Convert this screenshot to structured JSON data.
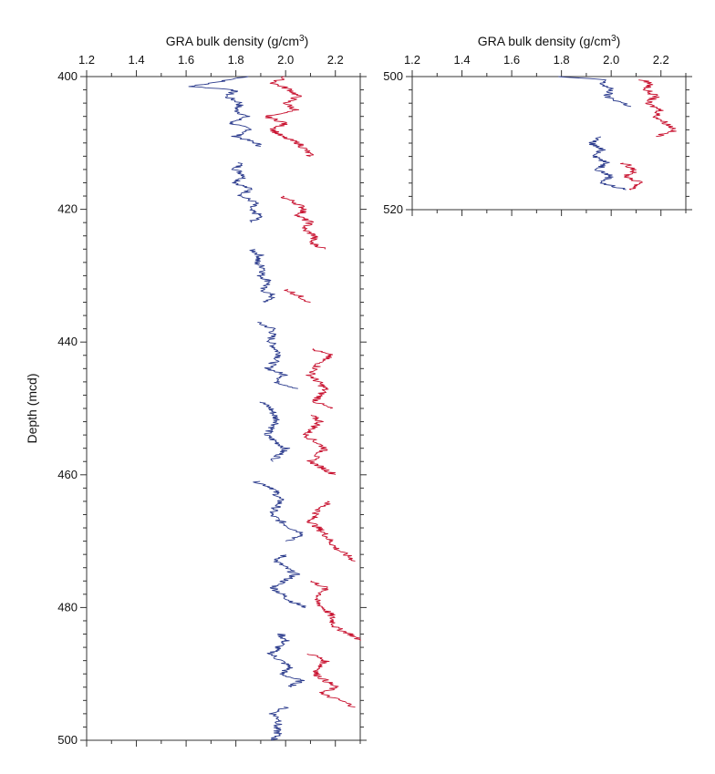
{
  "chart_data": [
    {
      "type": "line",
      "orientation": "depth-profile",
      "xlabel": "GRA bulk density (g/cm",
      "xlabel_sup": "3",
      "xlabel_end": ")",
      "ylabel": "Depth (mcd)",
      "xlim": [
        1.2,
        2.3
      ],
      "ylim": [
        400,
        500
      ],
      "y_inverted": true,
      "x_tick_labels": [
        "1.2",
        "1.4",
        "1.6",
        "1.8",
        "2.0",
        "2.2"
      ],
      "y_tick_labels": [
        "400",
        "420",
        "440",
        "460",
        "480",
        "500"
      ],
      "series": [
        {
          "color": "#2a3a8c",
          "segments": [
            {
              "depth": [
                400.0,
                401.5,
                402.0,
                403.0,
                404.0,
                405.0,
                406.0,
                407.0,
                408.0,
                409.0,
                410.0,
                410.5
              ],
              "density": [
                1.85,
                1.62,
                1.8,
                1.76,
                1.82,
                1.8,
                1.84,
                1.78,
                1.86,
                1.8,
                1.88,
                1.9
              ]
            },
            {
              "depth": [
                413.0,
                414.0,
                415.0,
                416.0,
                417.0,
                418.0,
                419.0,
                420.0,
                421.0,
                422.0
              ],
              "density": [
                1.82,
                1.8,
                1.84,
                1.8,
                1.86,
                1.82,
                1.88,
                1.85,
                1.9,
                1.86
              ]
            },
            {
              "depth": [
                426.0,
                427.0,
                428.0,
                429.0,
                430.0,
                431.0,
                432.0,
                433.0,
                434.0
              ],
              "density": [
                1.86,
                1.9,
                1.88,
                1.92,
                1.9,
                1.94,
                1.9,
                1.95,
                1.92
              ]
            },
            {
              "depth": [
                437.0,
                438.0,
                440.0,
                442.0,
                444.0,
                445.0,
                446.0,
                447.0
              ],
              "density": [
                1.88,
                1.95,
                1.94,
                1.98,
                1.93,
                2.0,
                1.96,
                2.05
              ]
            },
            {
              "depth": [
                449.0,
                450.0,
                452.0,
                454.0,
                456.0,
                458.0
              ],
              "density": [
                1.9,
                1.94,
                1.97,
                1.92,
                2.0,
                1.95
              ]
            },
            {
              "depth": [
                461.0,
                462.0,
                464.0,
                466.0,
                468.0,
                469.0,
                470.0
              ],
              "density": [
                1.88,
                1.95,
                1.98,
                1.94,
                2.02,
                2.08,
                2.0
              ]
            },
            {
              "depth": [
                472.0,
                473.0,
                475.0,
                477.0,
                479.0,
                480.0
              ],
              "density": [
                2.0,
                1.96,
                2.04,
                1.95,
                2.02,
                2.08
              ]
            },
            {
              "depth": [
                484.0,
                485.0,
                487.0,
                489.0,
                490.0,
                491.0,
                492.0
              ],
              "density": [
                1.98,
                2.0,
                1.94,
                2.02,
                1.98,
                2.06,
                2.02
              ]
            },
            {
              "depth": [
                495.0,
                496.0,
                497.0,
                498.0,
                499.0,
                500.0
              ],
              "density": [
                2.0,
                1.95,
                1.98,
                1.96,
                1.97,
                1.95
              ]
            }
          ]
        },
        {
          "color": "#c8102e",
          "segments": [
            {
              "depth": [
                400.0,
                401.0,
                402.0,
                403.0,
                404.0,
                405.0,
                406.0,
                407.0,
                408.0,
                409.0,
                410.0,
                411.0,
                412.0
              ],
              "density": [
                2.0,
                1.95,
                2.02,
                2.05,
                2.0,
                2.04,
                1.92,
                2.0,
                1.95,
                1.98,
                2.05,
                2.08,
                2.1
              ]
            },
            {
              "depth": [
                418.0,
                419.0,
                420.0,
                421.0,
                422.0,
                423.0,
                424.0,
                425.0,
                426.0
              ],
              "density": [
                1.98,
                2.04,
                2.08,
                2.05,
                2.1,
                2.07,
                2.12,
                2.1,
                2.16
              ]
            },
            {
              "depth": [
                432.0,
                433.0,
                434.0
              ],
              "density": [
                2.0,
                2.05,
                2.1
              ]
            },
            {
              "depth": [
                441.0,
                442.0,
                443.0,
                445.0,
                447.0,
                449.0,
                450.0
              ],
              "density": [
                2.1,
                2.18,
                2.14,
                2.1,
                2.16,
                2.12,
                2.18
              ]
            },
            {
              "depth": [
                451.0,
                452.0,
                454.0,
                456.0,
                458.0,
                460.0
              ],
              "density": [
                2.1,
                2.14,
                2.08,
                2.16,
                2.1,
                2.2
              ]
            },
            {
              "depth": [
                464.0,
                465.0,
                467.0,
                469.0,
                471.0,
                472.0,
                473.0
              ],
              "density": [
                2.18,
                2.14,
                2.1,
                2.16,
                2.2,
                2.24,
                2.28
              ]
            },
            {
              "depth": [
                476.0,
                477.0,
                479.0,
                481.0,
                483.0,
                484.0,
                485.0
              ],
              "density": [
                2.1,
                2.16,
                2.12,
                2.18,
                2.2,
                2.26,
                2.3
              ]
            },
            {
              "depth": [
                487.0,
                488.0,
                490.0,
                492.0,
                493.0,
                494.0,
                495.0
              ],
              "density": [
                2.1,
                2.16,
                2.12,
                2.2,
                2.14,
                2.22,
                2.28
              ]
            }
          ]
        }
      ]
    },
    {
      "type": "line",
      "orientation": "depth-profile",
      "xlabel": "GRA bulk density (g/cm",
      "xlabel_sup": "3",
      "xlabel_end": ")",
      "ylabel": "",
      "xlim": [
        1.2,
        2.3
      ],
      "ylim": [
        500,
        520
      ],
      "y_inverted": true,
      "x_tick_labels": [
        "1.2",
        "1.4",
        "1.6",
        "1.8",
        "2.0",
        "2.2"
      ],
      "y_tick_labels": [
        "500",
        "520"
      ],
      "series": [
        {
          "color": "#2a3a8c",
          "segments": [
            {
              "depth": [
                500.0,
                500.5,
                501.0,
                502.0,
                503.0,
                504.0,
                504.5
              ],
              "density": [
                1.78,
                1.98,
                1.96,
                2.0,
                1.98,
                2.05,
                2.08
              ]
            },
            {
              "depth": [
                509.0,
                510.0,
                511.0,
                512.0,
                513.0,
                514.0,
                515.0,
                516.0,
                517.0
              ],
              "density": [
                1.95,
                1.92,
                1.96,
                1.94,
                1.98,
                1.95,
                2.0,
                1.96,
                2.06
              ]
            }
          ]
        },
        {
          "color": "#c8102e",
          "segments": [
            {
              "depth": [
                500.5,
                501.0,
                502.0,
                503.0,
                504.0,
                505.0,
                506.0,
                507.0,
                508.0,
                509.0
              ],
              "density": [
                2.12,
                2.16,
                2.14,
                2.18,
                2.14,
                2.2,
                2.18,
                2.22,
                2.26,
                2.18
              ]
            },
            {
              "depth": [
                513.0,
                514.0,
                515.0,
                516.0,
                517.0
              ],
              "density": [
                2.05,
                2.1,
                2.06,
                2.12,
                2.08
              ]
            }
          ]
        }
      ]
    }
  ]
}
